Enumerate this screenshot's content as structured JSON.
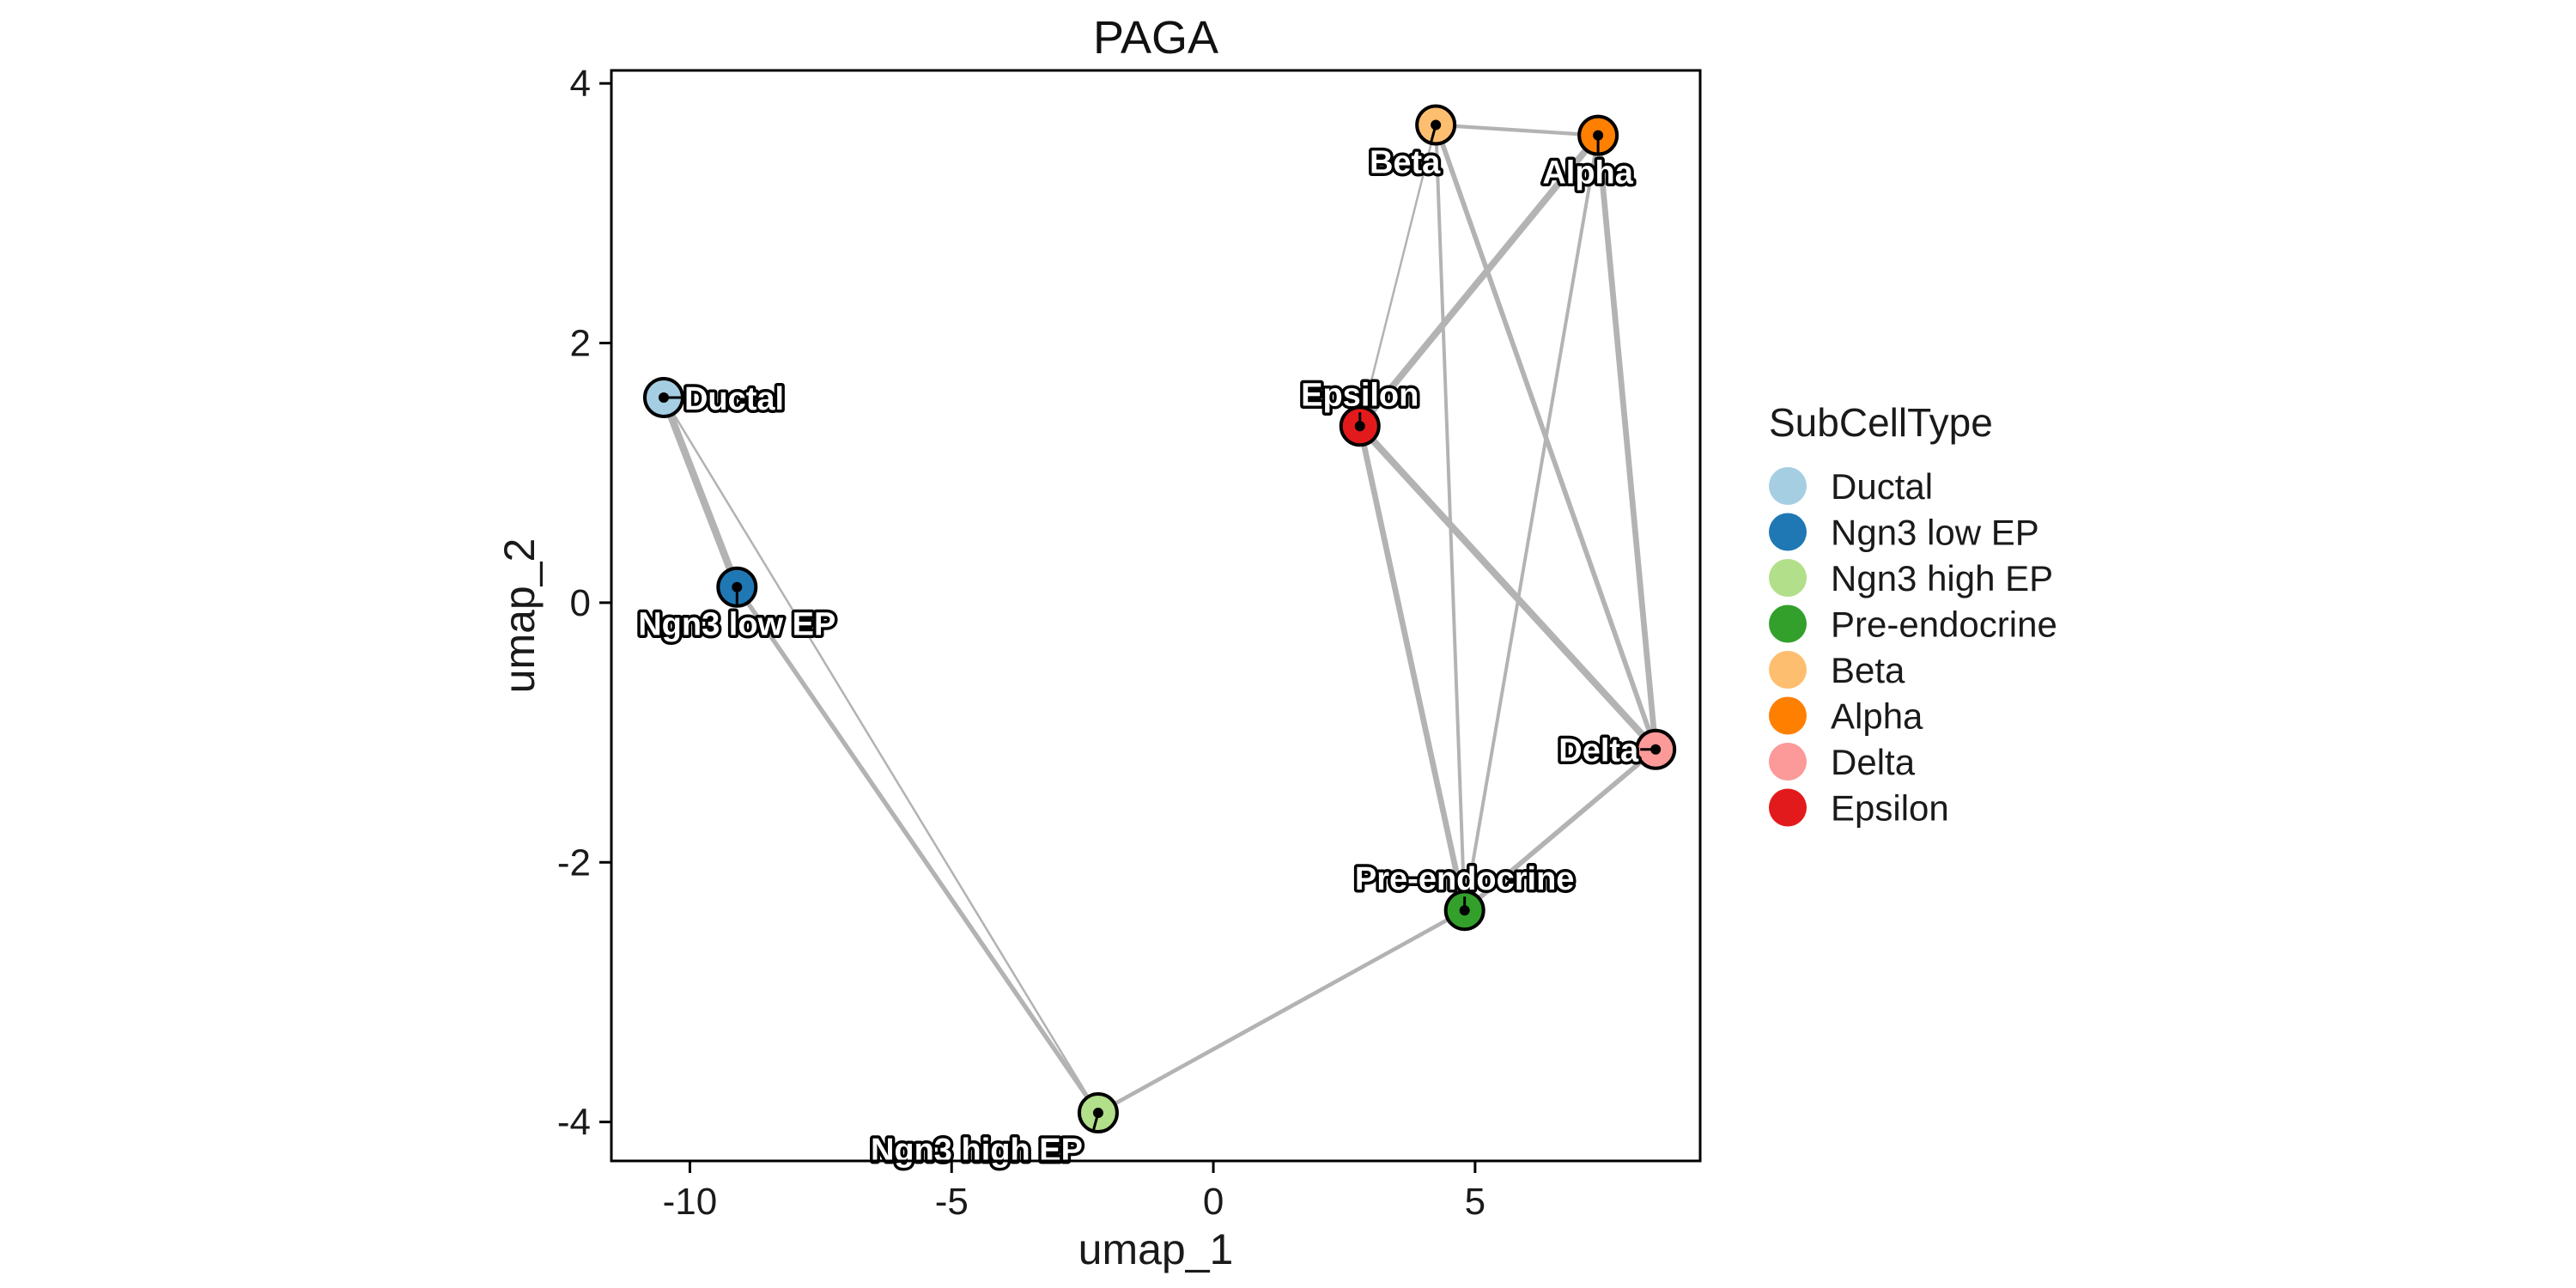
{
  "chart_data": {
    "type": "scatter",
    "title": "PAGA",
    "xlabel": "umap_1",
    "ylabel": "umap_2",
    "xlim": [
      -11.5,
      9.3
    ],
    "ylim": [
      -4.3,
      4.1
    ],
    "xticks": [
      -10,
      -5,
      0,
      5
    ],
    "yticks": [
      -4,
      -2,
      0,
      2,
      4
    ],
    "grid": false,
    "legend_title": "SubCellType",
    "legend_position": "right",
    "nodes": [
      {
        "name": "Ductal",
        "x": -10.5,
        "y": 1.58,
        "color": "#a6cee3"
      },
      {
        "name": "Ngn3 low EP",
        "x": -9.1,
        "y": 0.12,
        "color": "#1f78b4"
      },
      {
        "name": "Ngn3 high EP",
        "x": -2.2,
        "y": -3.93,
        "color": "#b2df8a"
      },
      {
        "name": "Pre-endocrine",
        "x": 4.8,
        "y": -2.37,
        "color": "#33a02c"
      },
      {
        "name": "Beta",
        "x": 4.25,
        "y": 3.68,
        "color": "#fdbf6f"
      },
      {
        "name": "Alpha",
        "x": 7.35,
        "y": 3.6,
        "color": "#ff7f00"
      },
      {
        "name": "Delta",
        "x": 8.45,
        "y": -1.13,
        "color": "#fb9a99"
      },
      {
        "name": "Epsilon",
        "x": 2.8,
        "y": 1.36,
        "color": "#e31a1c"
      }
    ],
    "edges": [
      {
        "source": "Ductal",
        "target": "Ngn3 low EP",
        "weight": 1.0
      },
      {
        "source": "Ductal",
        "target": "Ngn3 high EP",
        "weight": 0.15
      },
      {
        "source": "Ngn3 low EP",
        "target": "Ngn3 high EP",
        "weight": 0.55
      },
      {
        "source": "Ngn3 high EP",
        "target": "Pre-endocrine",
        "weight": 0.45
      },
      {
        "source": "Pre-endocrine",
        "target": "Epsilon",
        "weight": 0.75
      },
      {
        "source": "Pre-endocrine",
        "target": "Beta",
        "weight": 0.35
      },
      {
        "source": "Pre-endocrine",
        "target": "Alpha",
        "weight": 0.35
      },
      {
        "source": "Pre-endocrine",
        "target": "Delta",
        "weight": 0.6
      },
      {
        "source": "Epsilon",
        "target": "Delta",
        "weight": 0.95
      },
      {
        "source": "Epsilon",
        "target": "Alpha",
        "weight": 0.9
      },
      {
        "source": "Epsilon",
        "target": "Beta",
        "weight": 0.15
      },
      {
        "source": "Beta",
        "target": "Alpha",
        "weight": 0.4
      },
      {
        "source": "Beta",
        "target": "Delta",
        "weight": 0.6
      },
      {
        "source": "Alpha",
        "target": "Delta",
        "weight": 0.75
      }
    ],
    "label_placement": [
      {
        "name": "Ductal",
        "anchor": "start",
        "side": "right"
      },
      {
        "name": "Ngn3 low EP",
        "anchor": "middle",
        "side": "below"
      },
      {
        "name": "Ngn3 high EP",
        "anchor": "end",
        "side": "below-left"
      },
      {
        "name": "Pre-endocrine",
        "anchor": "middle",
        "side": "above"
      },
      {
        "name": "Beta",
        "anchor": "middle",
        "side": "below-left"
      },
      {
        "name": "Alpha",
        "anchor": "middle",
        "side": "below"
      },
      {
        "name": "Delta",
        "anchor": "end",
        "side": "left"
      },
      {
        "name": "Epsilon",
        "anchor": "middle",
        "side": "above"
      }
    ],
    "colors": {
      "edge": "#b3b3b3",
      "node_stroke": "#000000",
      "axis": "#000000"
    }
  }
}
